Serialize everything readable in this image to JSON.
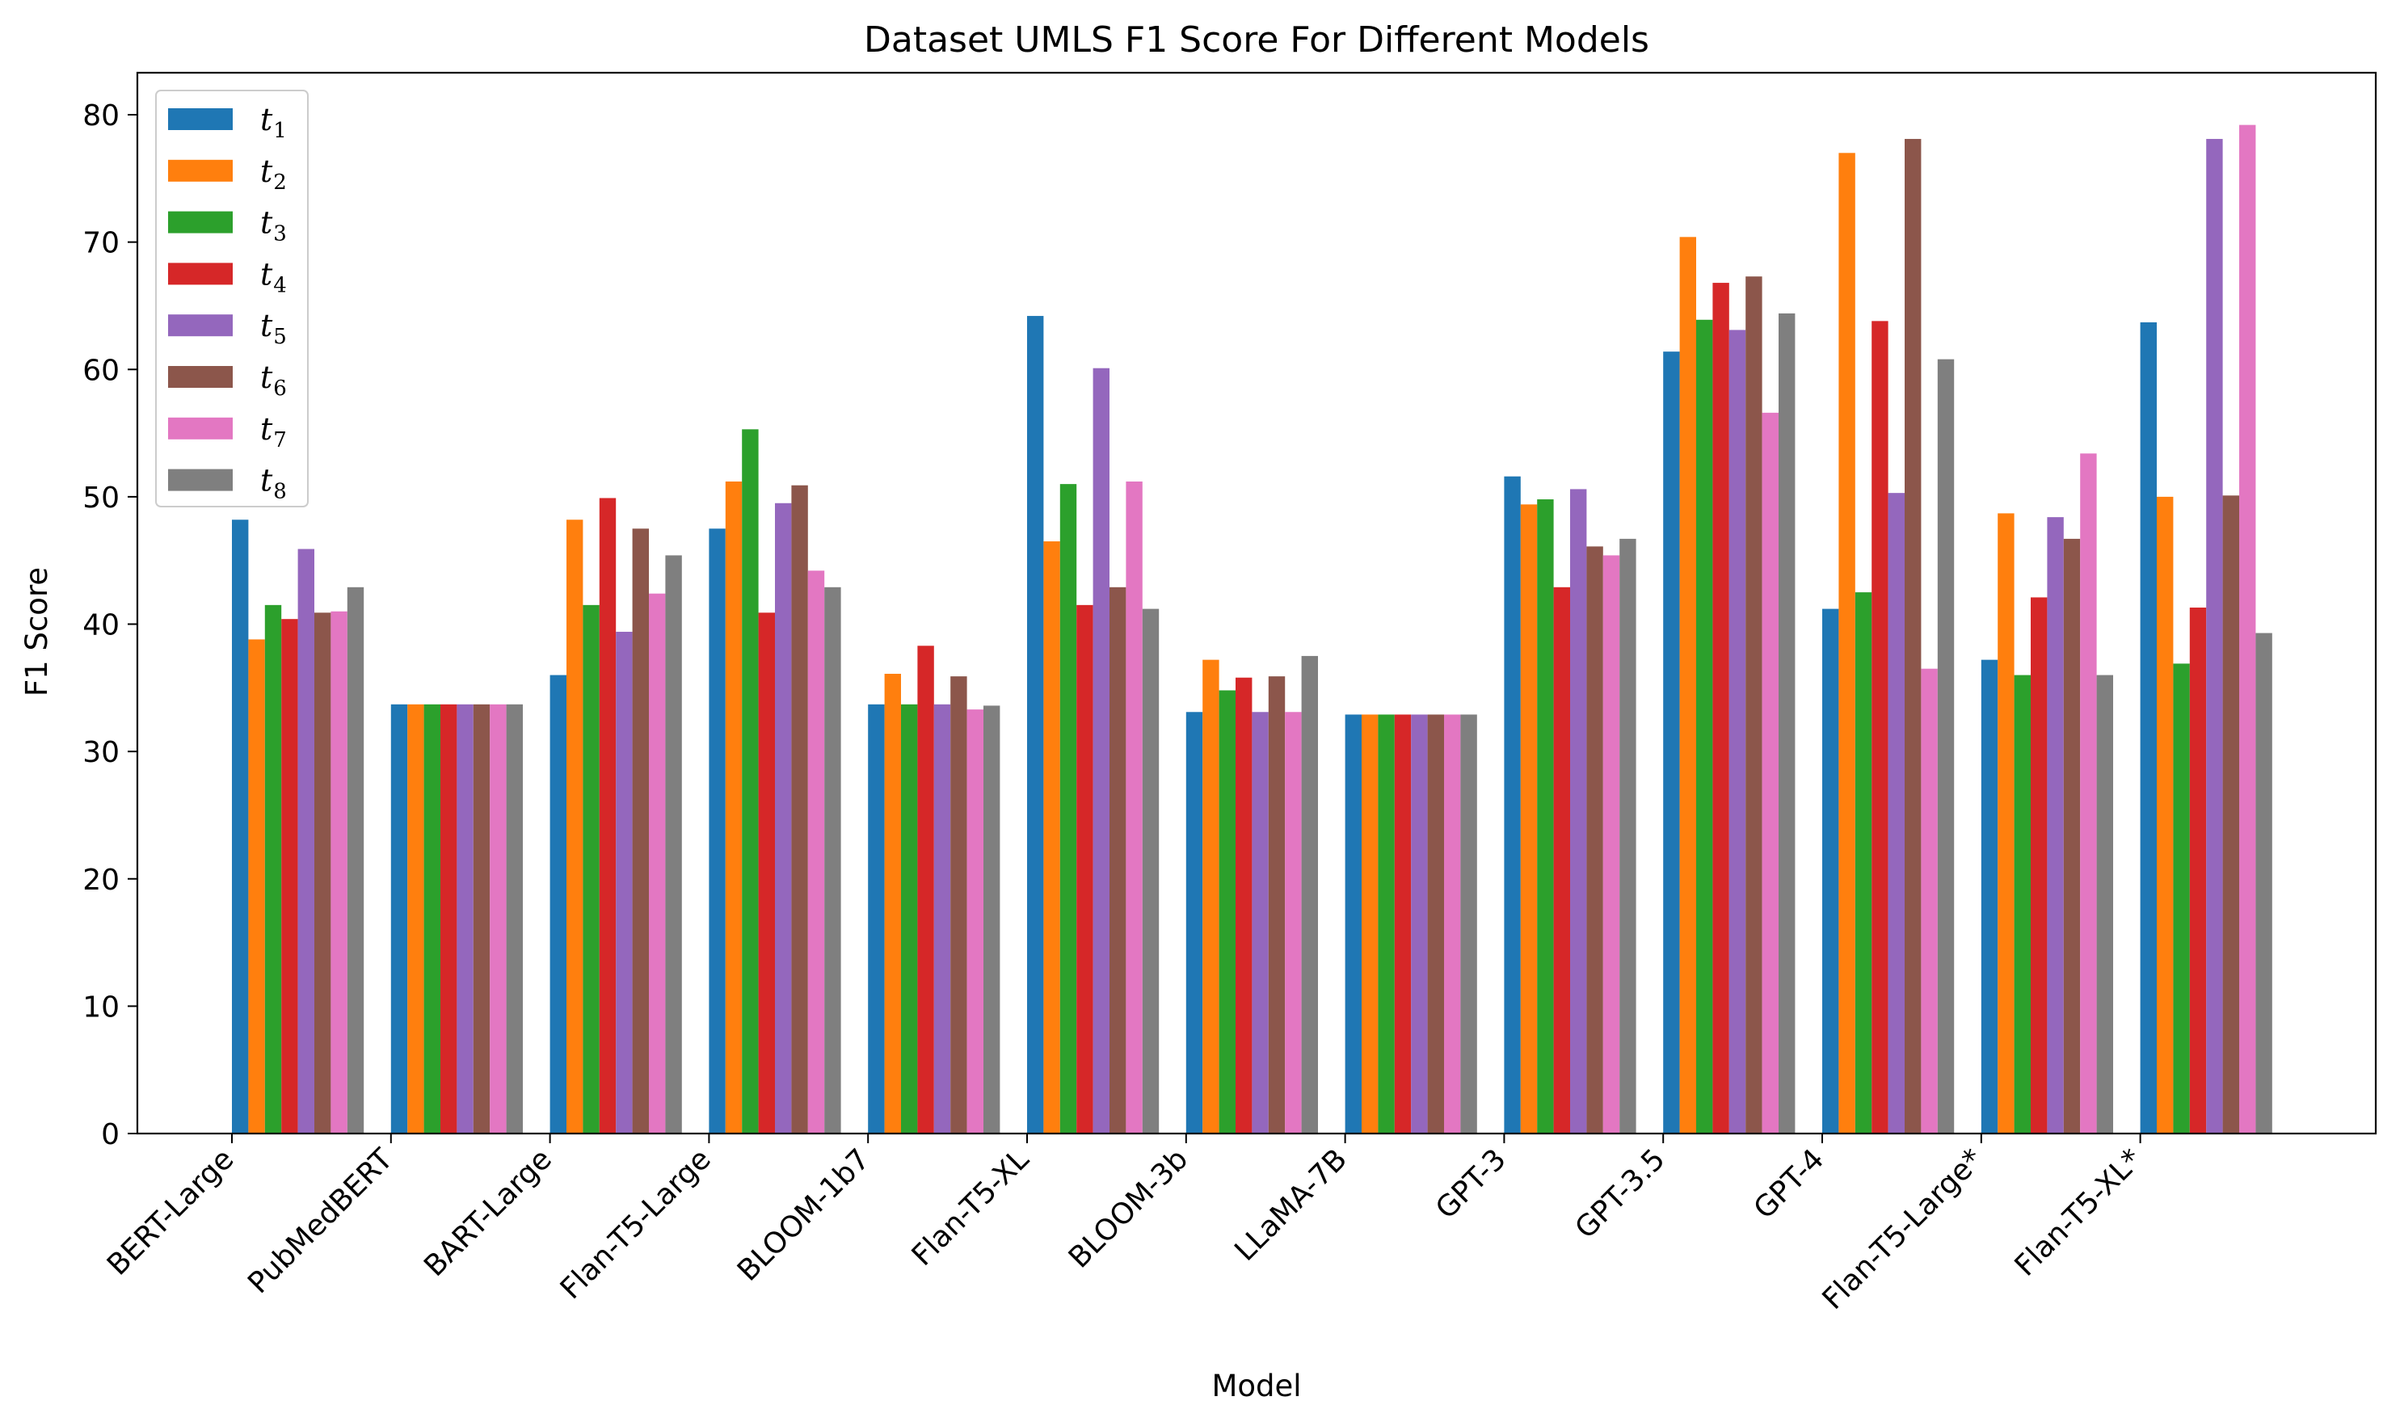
{
  "chart_data": {
    "type": "bar",
    "title": "Dataset UMLS F1 Score For Different Models",
    "xlabel": "Model",
    "ylabel": "F1 Score",
    "ylim": [
      0,
      83.3
    ],
    "yticks": [
      0,
      10,
      20,
      30,
      40,
      50,
      60,
      70,
      80
    ],
    "legend_position": "top-left",
    "grid": false,
    "categories": [
      "BERT-Large",
      "PubMedBERT",
      "BART-Large",
      "Flan-T5-Large",
      "BLOOM-1b7",
      "Flan-T5-XL",
      "BLOOM-3b",
      "LLaMA-7B",
      "GPT-3",
      "GPT-3.5",
      "GPT-4",
      "Flan-T5-Large*",
      "Flan-T5-XL*"
    ],
    "series": [
      {
        "name": "t",
        "sub": "1",
        "color": "#1f77b4",
        "values": [
          48.2,
          33.7,
          36.0,
          47.5,
          33.7,
          64.2,
          33.1,
          32.9,
          51.6,
          61.4,
          41.2,
          37.2,
          63.7
        ]
      },
      {
        "name": "t",
        "sub": "2",
        "color": "#ff7f0e",
        "values": [
          38.8,
          33.7,
          48.2,
          51.2,
          36.1,
          46.5,
          37.2,
          32.9,
          49.4,
          70.4,
          77.0,
          48.7,
          50.0
        ]
      },
      {
        "name": "t",
        "sub": "3",
        "color": "#2ca02c",
        "values": [
          41.5,
          33.7,
          41.5,
          55.3,
          33.7,
          51.0,
          34.8,
          32.9,
          49.8,
          63.9,
          42.5,
          36.0,
          36.9
        ]
      },
      {
        "name": "t",
        "sub": "4",
        "color": "#d62728",
        "values": [
          40.4,
          33.7,
          49.9,
          40.9,
          38.3,
          41.5,
          35.8,
          32.9,
          42.9,
          66.8,
          63.8,
          42.1,
          41.3
        ]
      },
      {
        "name": "t",
        "sub": "5",
        "color": "#9467bd",
        "values": [
          45.9,
          33.7,
          39.4,
          49.5,
          33.7,
          60.1,
          33.1,
          32.9,
          50.6,
          63.1,
          50.3,
          48.4,
          78.1
        ]
      },
      {
        "name": "t",
        "sub": "6",
        "color": "#8c564b",
        "values": [
          40.9,
          33.7,
          47.5,
          50.9,
          35.9,
          42.9,
          35.9,
          32.9,
          46.1,
          67.3,
          78.1,
          46.7,
          50.1
        ]
      },
      {
        "name": "t",
        "sub": "7",
        "color": "#e377c2",
        "values": [
          41.0,
          33.7,
          42.4,
          44.2,
          33.3,
          51.2,
          33.1,
          32.9,
          45.4,
          56.6,
          36.5,
          53.4,
          79.2
        ]
      },
      {
        "name": "t",
        "sub": "8",
        "color": "#7f7f7f",
        "values": [
          42.9,
          33.7,
          45.4,
          42.9,
          33.6,
          41.2,
          37.5,
          32.9,
          46.7,
          64.4,
          60.8,
          36.0,
          39.3
        ]
      }
    ]
  }
}
